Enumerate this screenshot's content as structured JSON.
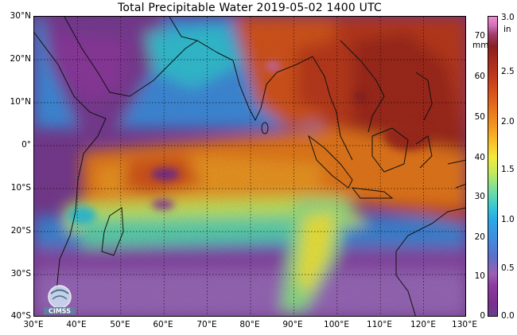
{
  "title": "Total Precipitable Water  2019-05-02 1400 UTC",
  "lat_ticks": [
    "30°N",
    "20°N",
    "10°N",
    "0°",
    "10°S",
    "20°S",
    "30°S",
    "40°S"
  ],
  "lon_ticks": [
    "30°E",
    "40°E",
    "50°E",
    "60°E",
    "70°E",
    "80°E",
    "90°E",
    "100°E",
    "110°E",
    "120°E",
    "130°E"
  ],
  "colorbar": {
    "mm_unit": "mm",
    "in_unit": "in",
    "mm_ticks": [
      "70",
      "60",
      "50",
      "40",
      "30",
      "20",
      "10",
      "0"
    ],
    "in_ticks": [
      "3.0",
      "2.5",
      "2.0",
      "1.5",
      "1.0",
      "0.5",
      "0.0"
    ]
  },
  "logo": {
    "label": "CIMSS"
  },
  "colors": {
    "moist": "#a3291f",
    "dry": "#7a2f8c",
    "mid": "#f3ea3a"
  }
}
